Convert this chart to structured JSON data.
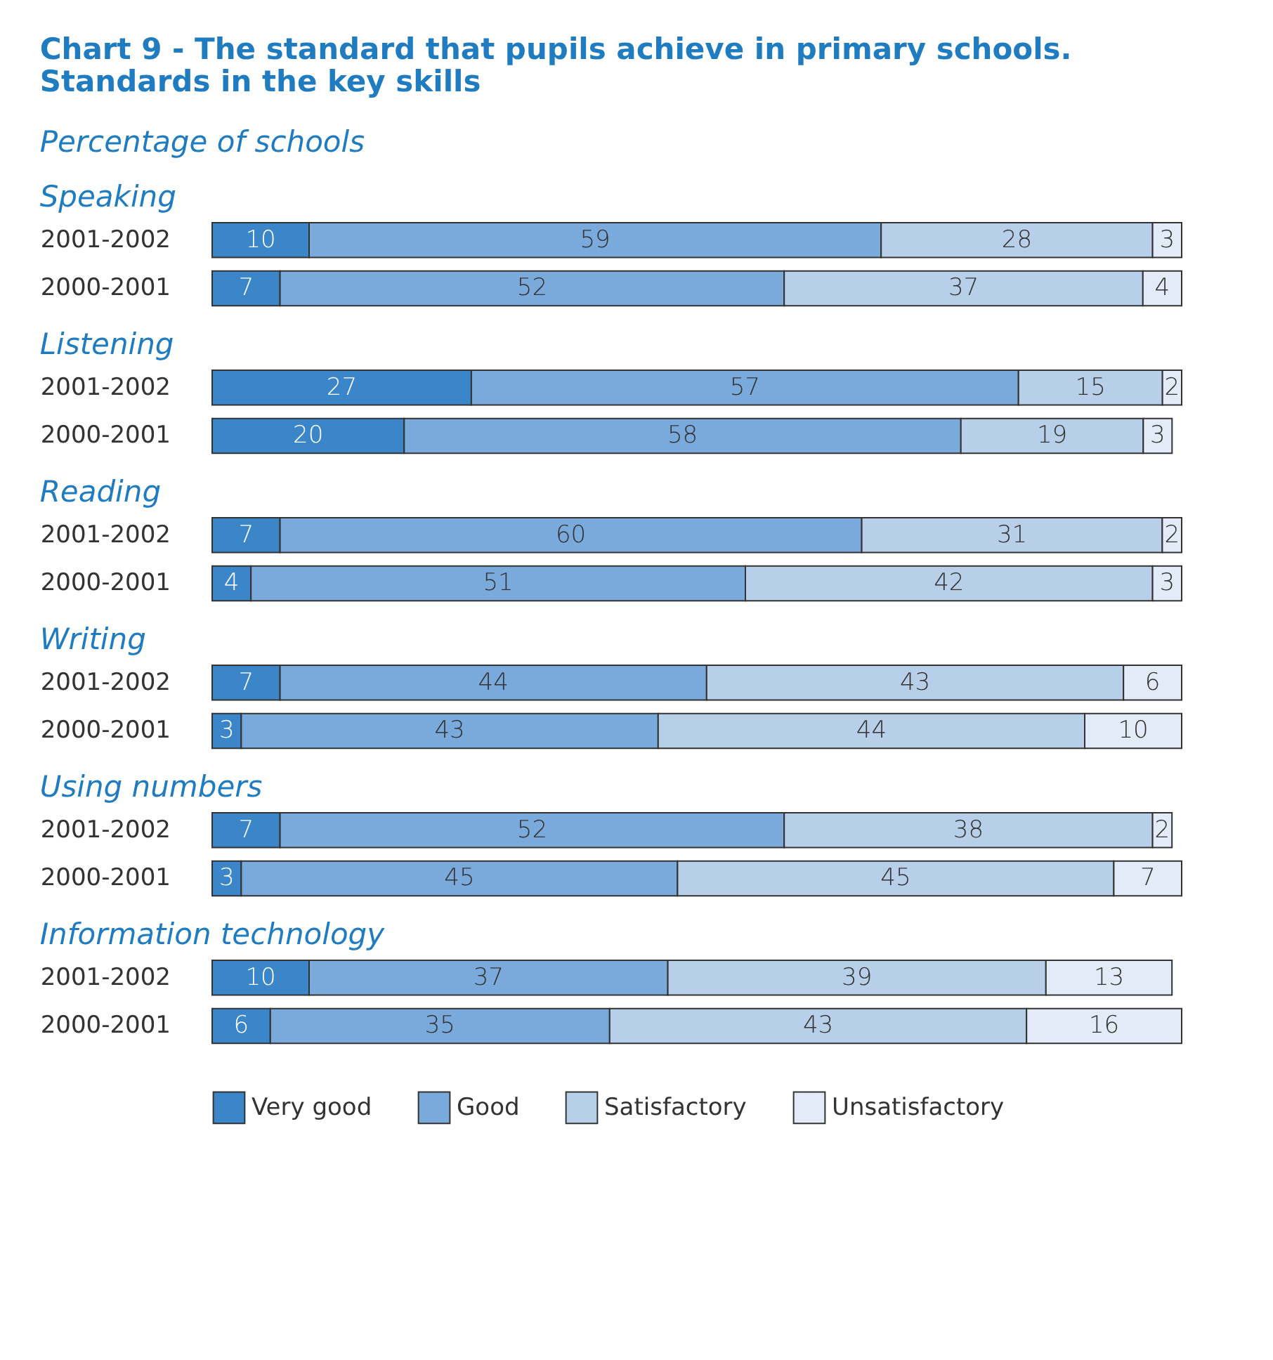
{
  "chart_data": [
    {
      "type": "other",
      "title": "Chart 9 - The standard that pupils achieve in primary schools. Standards in the key skills",
      "subtitle": "Percentage of schools"
    },
    {
      "type": "bar",
      "title": "Speaking",
      "orientation": "horizontal",
      "stacked": true,
      "data_labels": true,
      "categories": [
        "2001-2002",
        "2000-2001"
      ],
      "series": [
        {
          "color": "#3a86c8",
          "values": [
            10,
            7
          ]
        },
        {
          "color": "#7aaadc",
          "values": [
            59,
            52
          ]
        },
        {
          "color": "#b8cfe9",
          "values": [
            28,
            37
          ]
        },
        {
          "color": "#e2ebf7",
          "values": [
            3,
            4
          ]
        }
      ]
    },
    {
      "type": "bar",
      "title": "Listening",
      "orientation": "horizontal",
      "stacked": true,
      "data_labels": true,
      "categories": [
        "2001-2002",
        "2000-2001"
      ],
      "series": [
        {
          "color": "#3a86c8",
          "values": [
            27,
            20
          ]
        },
        {
          "color": "#7aaadc",
          "values": [
            57,
            58
          ]
        },
        {
          "color": "#b8cfe9",
          "values": [
            15,
            19
          ]
        },
        {
          "color": "#e2ebf7",
          "values": [
            2,
            3
          ]
        }
      ]
    },
    {
      "type": "bar",
      "title": "Reading",
      "orientation": "horizontal",
      "stacked": true,
      "data_labels": true,
      "categories": [
        "2001-2002",
        "2000-2001"
      ],
      "series": [
        {
          "color": "#3a86c8",
          "values": [
            7,
            4
          ]
        },
        {
          "color": "#7aaadc",
          "values": [
            60,
            51
          ]
        },
        {
          "color": "#b8cfe9",
          "values": [
            31,
            42
          ]
        },
        {
          "color": "#e2ebf7",
          "values": [
            2,
            3
          ]
        }
      ]
    },
    {
      "type": "bar",
      "title": "Writing",
      "orientation": "horizontal",
      "stacked": true,
      "data_labels": true,
      "categories": [
        "2001-2002",
        "2000-2001"
      ],
      "series": [
        {
          "color": "#3a86c8",
          "values": [
            7,
            3
          ]
        },
        {
          "color": "#7aaadc",
          "values": [
            44,
            43
          ]
        },
        {
          "color": "#b8cfe9",
          "values": [
            43,
            44
          ]
        },
        {
          "color": "#e2ebf7",
          "values": [
            6,
            10
          ]
        }
      ]
    },
    {
      "type": "bar",
      "title": "Using numbers",
      "orientation": "horizontal",
      "stacked": true,
      "data_labels": true,
      "categories": [
        "2001-2002",
        "2000-2001"
      ],
      "series": [
        {
          "color": "#3a86c8",
          "values": [
            7,
            3
          ]
        },
        {
          "color": "#7aaadc",
          "values": [
            52,
            45
          ]
        },
        {
          "color": "#b8cfe9",
          "values": [
            38,
            45
          ]
        },
        {
          "color": "#e2ebf7",
          "values": [
            2,
            7
          ]
        }
      ]
    },
    {
      "type": "bar",
      "title": "Information technology",
      "orientation": "horizontal",
      "stacked": true,
      "data_labels": true,
      "legend": "bottom",
      "categories": [
        "2001-2002",
        "2000-2001"
      ],
      "series": [
        {
          "name": "Very good",
          "color": "#3a86c8",
          "values": [
            10,
            6
          ]
        },
        {
          "name": "Good",
          "color": "#7aaadc",
          "values": [
            37,
            35
          ]
        },
        {
          "name": "Satisfactory",
          "color": "#b8cfe9",
          "values": [
            39,
            43
          ]
        },
        {
          "name": "Unsatisfactory",
          "color": "#e2ebf7",
          "values": [
            13,
            16
          ]
        }
      ]
    }
  ]
}
